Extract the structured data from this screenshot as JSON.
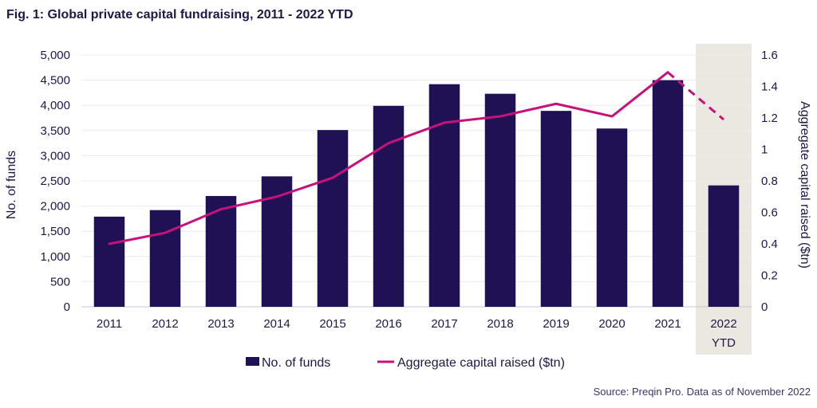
{
  "chart_data": {
    "type": "bar",
    "title": "Fig. 1: Global private capital fundraising, 2011 - 2022 YTD",
    "categories": [
      "2011",
      "2012",
      "2013",
      "2014",
      "2015",
      "2016",
      "2017",
      "2018",
      "2019",
      "2020",
      "2021",
      "2022 YTD"
    ],
    "category_labels": [
      [
        "2011"
      ],
      [
        "2012"
      ],
      [
        "2013"
      ],
      [
        "2014"
      ],
      [
        "2015"
      ],
      [
        "2016"
      ],
      [
        "2017"
      ],
      [
        "2018"
      ],
      [
        "2019"
      ],
      [
        "2020"
      ],
      [
        "2021"
      ],
      [
        "2022",
        "YTD"
      ]
    ],
    "series": [
      {
        "name": "No. of funds",
        "type": "bar",
        "axis": "left",
        "color": "#1f1153",
        "values": [
          1790,
          1920,
          2200,
          2590,
          3510,
          3990,
          4420,
          4230,
          3890,
          3540,
          4500,
          2410
        ]
      },
      {
        "name": "Aggregate capital raised ($tn)",
        "type": "line",
        "axis": "right",
        "color": "#c8117a",
        "values": [
          0.4,
          0.47,
          0.62,
          0.7,
          0.82,
          1.04,
          1.17,
          1.21,
          1.29,
          1.21,
          1.49,
          1.19
        ],
        "dashed_from_index": 10
      }
    ],
    "ylabel": "No. of funds",
    "ylim": [
      0,
      5000
    ],
    "yticks": [
      "0",
      "500",
      "1,000",
      "1,500",
      "2,000",
      "2,500",
      "3,000",
      "3,500",
      "4,000",
      "4,500",
      "5,000"
    ],
    "y2label": "Aggregate capital raised ($tn)",
    "y2lim": [
      0,
      1.6
    ],
    "y2ticks": [
      "0",
      "0.2",
      "0.4",
      "0.6",
      "0.8",
      "1",
      "1.2",
      "1.4",
      "1.6"
    ],
    "highlight_category": "2022 YTD",
    "highlight_color": "#ebe7e1",
    "legend": [
      "No. of funds",
      "Aggregate capital raised ($tn)"
    ],
    "legend_position": "bottom-center",
    "source": "Source: Preqin Pro. Data as of November 2022"
  }
}
